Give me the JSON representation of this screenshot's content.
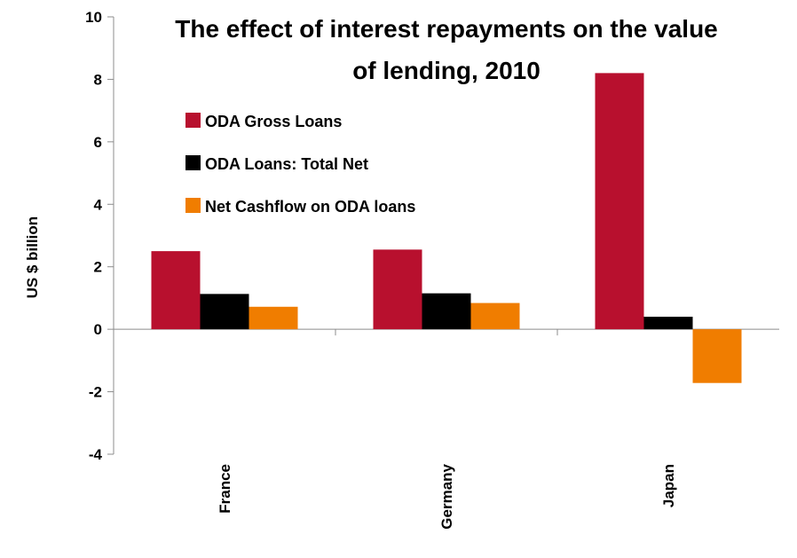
{
  "chart_data": {
    "type": "bar",
    "title_lines": [
      "The effect of interest repayments on the value",
      "of lending, 2010"
    ],
    "xlabel": "",
    "ylabel": "US $ billion",
    "ylim": [
      -4,
      10
    ],
    "yticks": [
      -4,
      -2,
      0,
      2,
      4,
      6,
      8,
      10
    ],
    "categories": [
      "France",
      "Germany",
      "Japan"
    ],
    "series": [
      {
        "name": "ODA Gross Loans",
        "color": "#B8102E",
        "values": [
          2.5,
          2.55,
          8.2
        ]
      },
      {
        "name": "ODA Loans: Total Net",
        "color": "#000000",
        "values": [
          1.13,
          1.15,
          0.4
        ]
      },
      {
        "name": "Net Cashflow on ODA loans",
        "color": "#F07D00",
        "values": [
          0.72,
          0.84,
          -1.72
        ]
      }
    ],
    "legend_position": "upper-left inside plot",
    "grid": false
  }
}
